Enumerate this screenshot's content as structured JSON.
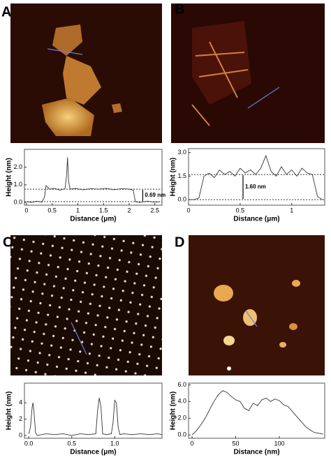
{
  "chart_data": [
    {
      "type": "line",
      "panel_label": "A",
      "x_label": "Distance (μm)",
      "y_label": "Height (nm)",
      "color": "#333333",
      "x": [
        0,
        0.1,
        0.2,
        0.3,
        0.35,
        0.38,
        0.45,
        0.55,
        0.65,
        0.75,
        0.78,
        0.8,
        0.82,
        0.85,
        0.95,
        1.1,
        1.25,
        1.4,
        1.55,
        1.7,
        1.85,
        2.0,
        2.08,
        2.12,
        2.2,
        2.35,
        2.5,
        2.6
      ],
      "values": [
        0.05,
        0.0,
        0.08,
        0.02,
        0.3,
        0.95,
        0.75,
        0.8,
        0.7,
        0.78,
        1.5,
        2.55,
        1.2,
        0.75,
        0.8,
        0.72,
        0.78,
        0.75,
        0.8,
        0.72,
        0.78,
        0.76,
        0.7,
        0.05,
        0.0,
        0.08,
        0.02,
        0.05
      ],
      "xlim": [
        -0.04,
        2.64
      ],
      "ylim": [
        -0.15,
        3.0
      ],
      "xticks": [
        0,
        0.5,
        1,
        1.5,
        2,
        2.5
      ],
      "yticks": [
        {
          "value": 0,
          "label": "0.0"
        },
        {
          "value": 1,
          "label": "1.0"
        },
        {
          "value": 2,
          "label": "2.0"
        }
      ],
      "reference_lines": [
        0.75,
        0.05
      ],
      "annotation": "0.69 nm"
    },
    {
      "type": "line",
      "panel_label": "B",
      "x_label": "Distance (μm)",
      "y_label": "Height (nm)",
      "color": "#333333",
      "x": [
        0,
        0.05,
        0.1,
        0.15,
        0.2,
        0.25,
        0.3,
        0.35,
        0.4,
        0.45,
        0.5,
        0.55,
        0.6,
        0.65,
        0.7,
        0.75,
        0.8,
        0.85,
        0.9,
        0.95,
        1.0,
        1.05,
        1.1,
        1.15,
        1.2,
        1.25,
        1.3
      ],
      "values": [
        0,
        0,
        0.1,
        1.5,
        1.7,
        1.4,
        1.9,
        1.6,
        1.8,
        1.5,
        2.0,
        1.7,
        1.9,
        1.6,
        2.0,
        2.8,
        1.8,
        1.5,
        2.1,
        1.6,
        1.9,
        1.5,
        2.0,
        1.7,
        1.6,
        0.2,
        0
      ],
      "xlim": [
        0,
        1.32
      ],
      "ylim": [
        -0.35,
        3.25
      ],
      "xticks": [
        0,
        0.5,
        1
      ],
      "yticks": [
        {
          "value": 0,
          "label": "0.0"
        },
        {
          "value": 1.5,
          "label": "1.5"
        },
        {
          "value": 3,
          "label": "3.0"
        }
      ],
      "reference_lines": [
        1.6,
        0
      ],
      "annotation": "1.60 nm"
    },
    {
      "type": "line",
      "panel_label": "C",
      "x_label": "Distance (μm)",
      "y_label": "Height (nm)",
      "color": "#333333",
      "x": [
        0,
        0.02,
        0.04,
        0.05,
        0.06,
        0.08,
        0.1,
        0.2,
        0.3,
        0.4,
        0.5,
        0.6,
        0.7,
        0.78,
        0.8,
        0.82,
        0.84,
        0.86,
        0.9,
        0.96,
        0.98,
        1.0,
        1.02,
        1.04,
        1.06,
        1.1,
        1.2,
        1.3,
        1.4,
        1.5,
        1.55
      ],
      "values": [
        0.2,
        1.0,
        3.5,
        4.0,
        3.0,
        0.3,
        0.0,
        0.2,
        0.1,
        0.2,
        0.0,
        0.2,
        0.1,
        0.2,
        3.0,
        4.6,
        3.5,
        0.2,
        0.1,
        0.2,
        1.5,
        4.3,
        4.0,
        1.0,
        0.1,
        0.2,
        0.1,
        0.2,
        0.1,
        0.2,
        0.1
      ],
      "xlim": [
        -0.05,
        1.55
      ],
      "ylim": [
        -0.35,
        6.4
      ],
      "xticks": [
        {
          "value": 0,
          "label": "0.0"
        },
        {
          "value": 0.5,
          "label": "0.5"
        },
        {
          "value": 1,
          "label": "1.0"
        }
      ],
      "yticks": [
        0,
        2,
        4
      ]
    },
    {
      "type": "line",
      "panel_label": "D",
      "x_label": "Distance (nm)",
      "y_label": "Height (nm)",
      "color": "#333333",
      "x": [
        0,
        5,
        10,
        15,
        20,
        25,
        30,
        35,
        40,
        45,
        50,
        55,
        60,
        65,
        70,
        75,
        80,
        85,
        90,
        95,
        100,
        105,
        110,
        115,
        120,
        125,
        130,
        135,
        140,
        145,
        150
      ],
      "values": [
        0,
        0.5,
        1.2,
        2.0,
        3.0,
        4.0,
        4.8,
        5.3,
        5.1,
        4.6,
        4.2,
        4.0,
        3.2,
        2.9,
        3.8,
        3.5,
        4.2,
        4.4,
        4.0,
        4.3,
        4.1,
        3.6,
        3.4,
        2.8,
        2.2,
        1.6,
        1.0,
        0.6,
        0.3,
        0.2,
        0.1
      ],
      "xlim": [
        -4,
        152
      ],
      "ylim": [
        -0.4,
        6.2
      ],
      "xticks": [
        0,
        50,
        100
      ],
      "yticks": [
        {
          "value": 0,
          "label": "0.0"
        },
        {
          "value": 2,
          "label": "2.0"
        },
        {
          "value": 4,
          "label": "4.0"
        },
        {
          "value": 6,
          "label": "6.0"
        }
      ]
    }
  ]
}
